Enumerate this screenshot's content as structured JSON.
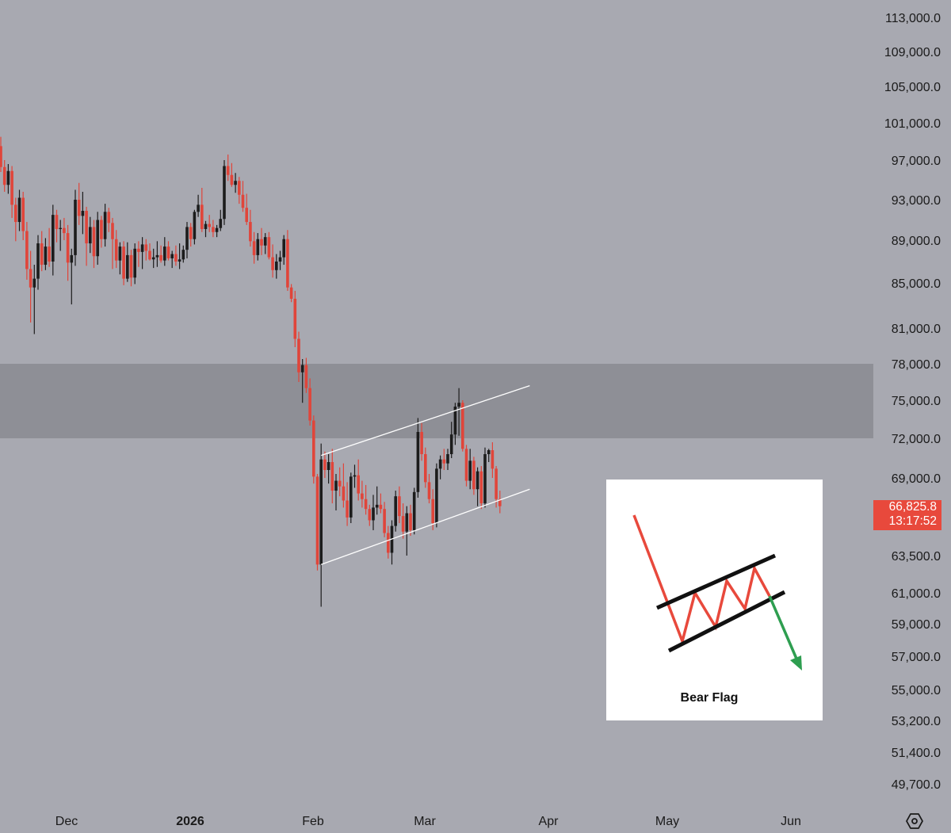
{
  "chart_data": {
    "type": "candlestick",
    "y_axis_ticks": [
      "113,000.0",
      "109,000.0",
      "105,000.0",
      "101,000.0",
      "97,000.0",
      "93,000.0",
      "89,000.0",
      "85,000.0",
      "81,000.0",
      "78,000.0",
      "75,000.0",
      "72,000.0",
      "69,000.0",
      "63,500.0",
      "61,000.0",
      "59,000.0",
      "57,000.0",
      "55,000.0",
      "53,200.0",
      "51,400.0",
      "49,700.0"
    ],
    "x_axis_ticks": [
      {
        "label": "Dec",
        "bold": false
      },
      {
        "label": "2026",
        "bold": true
      },
      {
        "label": "Feb",
        "bold": false
      },
      {
        "label": "Mar",
        "bold": false
      },
      {
        "label": "Apr",
        "bold": false
      },
      {
        "label": "May",
        "bold": false
      },
      {
        "label": "Jun",
        "bold": false
      }
    ],
    "last_price": "66,825.8",
    "countdown": "13:17:52",
    "zone": {
      "from": 72000,
      "to": 78000
    },
    "colors": {
      "up": "#1c1c1c",
      "down": "#e0453a",
      "zone": "#8e8f96",
      "channel": "#ffffff"
    },
    "candles": [
      [
        98500,
        99500,
        95800,
        96300
      ],
      [
        96300,
        97000,
        93800,
        94500
      ],
      [
        94500,
        96600,
        93600,
        95900
      ],
      [
        95900,
        96400,
        91200,
        92500
      ],
      [
        92500,
        93200,
        88900,
        90800
      ],
      [
        90800,
        94000,
        89900,
        93200
      ],
      [
        93200,
        93800,
        89000,
        89900
      ],
      [
        89900,
        90800,
        85300,
        86300
      ],
      [
        86300,
        88000,
        81500,
        84600
      ],
      [
        84600,
        86700,
        80500,
        85400
      ],
      [
        85400,
        89500,
        84400,
        88700
      ],
      [
        88700,
        89900,
        86100,
        86700
      ],
      [
        86700,
        89200,
        86200,
        88400
      ],
      [
        88400,
        90200,
        86500,
        87000
      ],
      [
        87000,
        92500,
        85700,
        91500
      ],
      [
        91500,
        92000,
        88800,
        90100
      ],
      [
        90100,
        91000,
        88000,
        90200
      ],
      [
        90200,
        91200,
        89000,
        89700
      ],
      [
        89700,
        90500,
        85200,
        86900
      ],
      [
        86900,
        88200,
        83100,
        87600
      ],
      [
        87600,
        94000,
        86600,
        93000
      ],
      [
        93000,
        94700,
        90500,
        91400
      ],
      [
        91400,
        93800,
        89600,
        91900
      ],
      [
        91900,
        92300,
        86600,
        88700
      ],
      [
        88700,
        91300,
        87800,
        90300
      ],
      [
        90300,
        91000,
        86400,
        87500
      ],
      [
        87500,
        91800,
        86700,
        91000
      ],
      [
        91000,
        91400,
        88300,
        89100
      ],
      [
        89100,
        92600,
        88400,
        91800
      ],
      [
        91800,
        92200,
        89800,
        90700
      ],
      [
        90700,
        91200,
        86300,
        89100
      ],
      [
        89100,
        90000,
        86400,
        87100
      ],
      [
        87100,
        88800,
        85800,
        88400
      ],
      [
        88400,
        88900,
        84800,
        85400
      ],
      [
        85400,
        88800,
        85100,
        87600
      ],
      [
        87600,
        88100,
        84700,
        85500
      ],
      [
        85500,
        88700,
        84900,
        88200
      ],
      [
        88200,
        88900,
        86500,
        87900
      ],
      [
        87900,
        89300,
        86300,
        88600
      ],
      [
        88600,
        89100,
        87100,
        88000
      ],
      [
        88000,
        88700,
        87100,
        87200
      ],
      [
        87200,
        88200,
        86400,
        87400
      ],
      [
        87400,
        88900,
        86500,
        87600
      ],
      [
        87600,
        88500,
        86900,
        87100
      ],
      [
        87100,
        89300,
        86600,
        88400
      ],
      [
        88400,
        88900,
        87100,
        87300
      ],
      [
        87300,
        88000,
        86400,
        87700
      ],
      [
        87700,
        88500,
        86600,
        87000
      ],
      [
        87000,
        88700,
        86300,
        87200
      ],
      [
        87200,
        88500,
        86900,
        88100
      ],
      [
        88100,
        90800,
        87300,
        90300
      ],
      [
        90300,
        90700,
        88400,
        89100
      ],
      [
        89100,
        92000,
        88600,
        91800
      ],
      [
        91800,
        93500,
        91300,
        92500
      ],
      [
        92500,
        94200,
        89800,
        90100
      ],
      [
        90100,
        90900,
        89300,
        90600
      ],
      [
        90600,
        91500,
        89800,
        90300
      ],
      [
        90300,
        91000,
        89300,
        89800
      ],
      [
        89800,
        90500,
        89300,
        90200
      ],
      [
        90200,
        92000,
        89900,
        91100
      ],
      [
        91100,
        97000,
        90500,
        96400
      ],
      [
        96400,
        97600,
        94900,
        95500
      ],
      [
        95500,
        96700,
        94300,
        94500
      ],
      [
        94500,
        95700,
        93700,
        94900
      ],
      [
        94900,
        95300,
        92600,
        93500
      ],
      [
        93500,
        94900,
        91800,
        92200
      ],
      [
        92200,
        93600,
        90500,
        90800
      ],
      [
        90800,
        92000,
        88400,
        88900
      ],
      [
        88900,
        89800,
        86800,
        87600
      ],
      [
        87600,
        89700,
        87100,
        89100
      ],
      [
        89100,
        90200,
        87600,
        88500
      ],
      [
        88500,
        89700,
        87700,
        89300
      ],
      [
        89300,
        89800,
        87200,
        87400
      ],
      [
        87400,
        88600,
        85500,
        86200
      ],
      [
        86200,
        87700,
        85400,
        87000
      ],
      [
        87000,
        88000,
        86200,
        87400
      ],
      [
        87400,
        89500,
        86700,
        89100
      ],
      [
        89100,
        90000,
        84300,
        84600
      ],
      [
        84600,
        84900,
        83300,
        83600
      ],
      [
        83600,
        84300,
        79400,
        80100
      ],
      [
        80100,
        80700,
        76500,
        77300
      ],
      [
        77300,
        78400,
        74800,
        77900
      ],
      [
        77900,
        78500,
        75600,
        76000
      ],
      [
        76000,
        76800,
        73000,
        73400
      ],
      [
        73400,
        73800,
        68600,
        69100
      ],
      [
        69100,
        69300,
        62500,
        62900
      ],
      [
        62900,
        71600,
        60100,
        70400
      ],
      [
        70400,
        71000,
        69000,
        69600
      ],
      [
        69600,
        70800,
        68600,
        70200
      ],
      [
        70200,
        71200,
        67200,
        68100
      ],
      [
        68100,
        69300,
        66700,
        68800
      ],
      [
        68800,
        69800,
        67700,
        68400
      ],
      [
        68400,
        70100,
        66900,
        67400
      ],
      [
        67400,
        68700,
        65600,
        66200
      ],
      [
        66200,
        69400,
        65800,
        69100
      ],
      [
        69100,
        70000,
        68300,
        69200
      ],
      [
        69200,
        70400,
        67400,
        67900
      ],
      [
        67900,
        68800,
        66900,
        67500
      ],
      [
        67500,
        68500,
        66400,
        66800
      ],
      [
        66800,
        67100,
        65600,
        66000
      ],
      [
        66000,
        67800,
        65300,
        66900
      ],
      [
        66900,
        68400,
        66400,
        67100
      ],
      [
        67100,
        67900,
        66500,
        66800
      ],
      [
        66800,
        67300,
        64800,
        65100
      ],
      [
        65100,
        65600,
        63300,
        63700
      ],
      [
        63700,
        66000,
        62900,
        65600
      ],
      [
        65600,
        68100,
        65200,
        67700
      ],
      [
        67700,
        68400,
        65800,
        66300
      ],
      [
        66300,
        67200,
        64700,
        65200
      ],
      [
        65200,
        67000,
        63500,
        66500
      ],
      [
        66500,
        67100,
        64900,
        65300
      ],
      [
        65300,
        68300,
        65000,
        68000
      ],
      [
        68000,
        73600,
        67600,
        72500
      ],
      [
        72500,
        73200,
        70300,
        70800
      ],
      [
        70800,
        71300,
        68300,
        68700
      ],
      [
        68700,
        69300,
        67200,
        67500
      ],
      [
        67500,
        68200,
        65300,
        65800
      ],
      [
        65800,
        70100,
        65500,
        69700
      ],
      [
        69700,
        70700,
        68900,
        70400
      ],
      [
        70400,
        71200,
        69600,
        70100
      ],
      [
        70100,
        71200,
        69600,
        70800
      ],
      [
        70800,
        73300,
        70500,
        72300
      ],
      [
        72300,
        74800,
        71500,
        74500
      ],
      [
        74500,
        76000,
        72200,
        74800
      ],
      [
        74800,
        75000,
        71000,
        71200
      ],
      [
        71200,
        71500,
        68400,
        68800
      ],
      [
        68800,
        71200,
        68200,
        70300
      ],
      [
        70300,
        70600,
        67800,
        68200
      ],
      [
        68200,
        69800,
        67000,
        69500
      ],
      [
        69500,
        69900,
        66800,
        67200
      ],
      [
        67200,
        71300,
        66900,
        70800
      ],
      [
        70800,
        71200,
        70200,
        71100
      ],
      [
        71100,
        71700,
        69000,
        69700
      ],
      [
        69700,
        69900,
        66900,
        67500
      ],
      [
        67500,
        68100,
        66500,
        67000
      ]
    ],
    "channel": {
      "upper": [
        {
          "i": 86,
          "p": 70700
        },
        {
          "i": 142,
          "p": 76200
        }
      ],
      "lower": [
        {
          "i": 86,
          "p": 62900
        },
        {
          "i": 142,
          "p": 68200
        }
      ]
    }
  },
  "inset": {
    "title": "Bear Flag",
    "colors": {
      "pole": "#e8493c",
      "flag": "#e8493c",
      "lines": "#111111",
      "breakout": "#2e9e50"
    }
  },
  "icons": {
    "settings": "hexagon-gear-icon"
  }
}
